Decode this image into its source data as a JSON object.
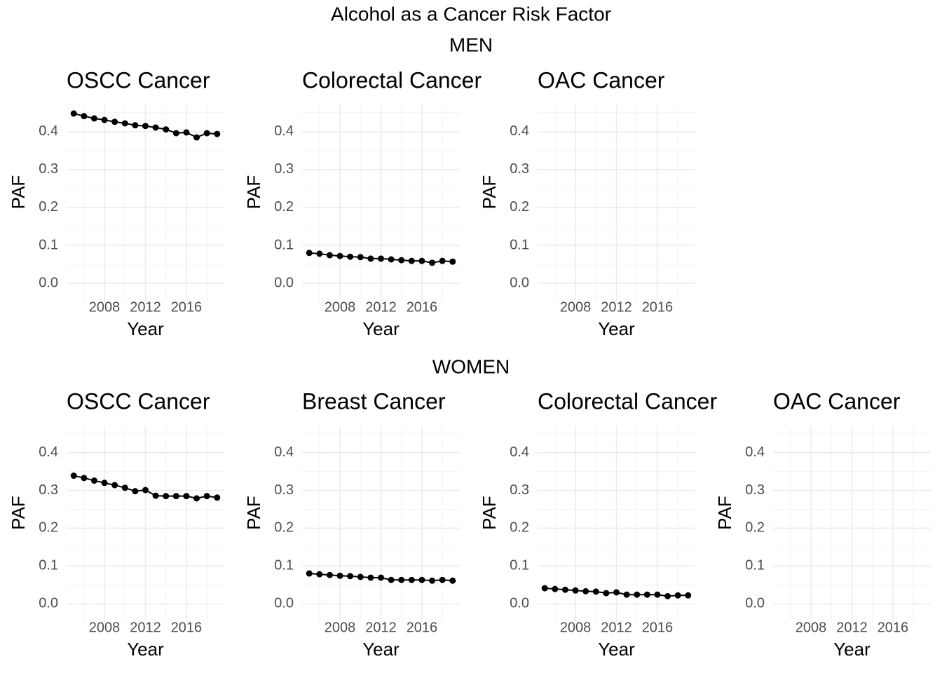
{
  "title": "Alcohol as a Cancer Risk Factor",
  "section_labels": [
    "MEN",
    "WOMEN"
  ],
  "chart_data": [
    {
      "type": "line",
      "title": "OSCC Cancer",
      "xlabel": "Year",
      "ylabel": "PAF",
      "color": "#000000",
      "grid": true,
      "markers": true,
      "x": [
        2005,
        2006,
        2007,
        2008,
        2009,
        2010,
        2011,
        2012,
        2013,
        2014,
        2015,
        2016,
        2017,
        2018,
        2019
      ],
      "values": [
        0.448,
        0.441,
        0.435,
        0.431,
        0.426,
        0.422,
        0.417,
        0.415,
        0.411,
        0.406,
        0.396,
        0.398,
        0.385,
        0.396,
        0.394
      ],
      "xlim": [
        2004.3,
        2019.7
      ],
      "ylim": [
        -0.048,
        0.47
      ],
      "xticks": [
        2008,
        2012,
        2016
      ],
      "yticks": [
        {
          "value": 0,
          "label": "0.0"
        },
        0.1,
        0.2,
        0.3,
        0.4
      ]
    },
    {
      "type": "line",
      "title": "Colorectal Cancer",
      "xlabel": "Year",
      "ylabel": "PAF",
      "color": "#000000",
      "grid": true,
      "markers": true,
      "x": [
        2005,
        2006,
        2007,
        2008,
        2009,
        2010,
        2011,
        2012,
        2013,
        2014,
        2015,
        2016,
        2017,
        2018,
        2019
      ],
      "values": [
        0.08,
        0.078,
        0.074,
        0.072,
        0.07,
        0.069,
        0.065,
        0.065,
        0.063,
        0.061,
        0.059,
        0.059,
        0.054,
        0.059,
        0.057
      ],
      "xlim": [
        2004.3,
        2019.7
      ],
      "ylim": [
        -0.048,
        0.47
      ],
      "xticks": [
        2008,
        2012,
        2016
      ],
      "yticks": [
        {
          "value": 0,
          "label": "0.0"
        },
        0.1,
        0.2,
        0.3,
        0.4
      ]
    },
    {
      "type": "line",
      "title": "OAC Cancer",
      "xlabel": "Year",
      "ylabel": "PAF",
      "color": "#000000",
      "grid": true,
      "markers": true,
      "xlim": [
        2004.3,
        2019.7
      ],
      "ylim": [
        -0.048,
        0.47
      ],
      "xticks": [
        2008,
        2012,
        2016
      ],
      "yticks": [
        {
          "value": 0,
          "label": "0.0"
        },
        0.1,
        0.2,
        0.3,
        0.4
      ]
    },
    {
      "type": "line",
      "title": "OSCC Cancer",
      "xlabel": "Year",
      "ylabel": "PAF",
      "color": "#000000",
      "grid": true,
      "markers": true,
      "x": [
        2005,
        2006,
        2007,
        2008,
        2009,
        2010,
        2011,
        2012,
        2013,
        2014,
        2015,
        2016,
        2017,
        2018,
        2019
      ],
      "values": [
        0.339,
        0.333,
        0.326,
        0.32,
        0.314,
        0.307,
        0.298,
        0.301,
        0.286,
        0.285,
        0.285,
        0.285,
        0.279,
        0.285,
        0.281
      ],
      "xlim": [
        2004.3,
        2019.7
      ],
      "ylim": [
        -0.048,
        0.47
      ],
      "xticks": [
        2008,
        2012,
        2016
      ],
      "yticks": [
        {
          "value": 0,
          "label": "0.0"
        },
        0.1,
        0.2,
        0.3,
        0.4
      ]
    },
    {
      "type": "line",
      "title": "Breast Cancer",
      "xlabel": "Year",
      "ylabel": "PAF",
      "color": "#000000",
      "grid": true,
      "markers": true,
      "x": [
        2005,
        2006,
        2007,
        2008,
        2009,
        2010,
        2011,
        2012,
        2013,
        2014,
        2015,
        2016,
        2017,
        2018,
        2019
      ],
      "values": [
        0.08,
        0.078,
        0.076,
        0.074,
        0.073,
        0.071,
        0.069,
        0.069,
        0.063,
        0.063,
        0.063,
        0.063,
        0.061,
        0.063,
        0.061
      ],
      "xlim": [
        2004.3,
        2019.7
      ],
      "ylim": [
        -0.048,
        0.47
      ],
      "xticks": [
        2008,
        2012,
        2016
      ],
      "yticks": [
        {
          "value": 0,
          "label": "0.0"
        },
        0.1,
        0.2,
        0.3,
        0.4
      ]
    },
    {
      "type": "line",
      "title": "Colorectal Cancer",
      "xlabel": "Year",
      "ylabel": "PAF",
      "color": "#000000",
      "grid": true,
      "markers": true,
      "x": [
        2005,
        2006,
        2007,
        2008,
        2009,
        2010,
        2011,
        2012,
        2013,
        2014,
        2015,
        2016,
        2017,
        2018,
        2019
      ],
      "values": [
        0.041,
        0.039,
        0.037,
        0.035,
        0.033,
        0.032,
        0.028,
        0.03,
        0.024,
        0.024,
        0.024,
        0.024,
        0.02,
        0.022,
        0.022
      ],
      "xlim": [
        2004.3,
        2019.7
      ],
      "ylim": [
        -0.048,
        0.47
      ],
      "xticks": [
        2008,
        2012,
        2016
      ],
      "yticks": [
        {
          "value": 0,
          "label": "0.0"
        },
        0.1,
        0.2,
        0.3,
        0.4
      ]
    },
    {
      "type": "line",
      "title": "OAC Cancer",
      "xlabel": "Year",
      "ylabel": "PAF",
      "color": "#000000",
      "grid": true,
      "markers": true,
      "xlim": [
        2004.3,
        2019.7
      ],
      "ylim": [
        -0.048,
        0.47
      ],
      "xticks": [
        2008,
        2012,
        2016
      ],
      "yticks": [
        {
          "value": 0,
          "label": "0.0"
        },
        0.1,
        0.2,
        0.3,
        0.4
      ]
    }
  ]
}
